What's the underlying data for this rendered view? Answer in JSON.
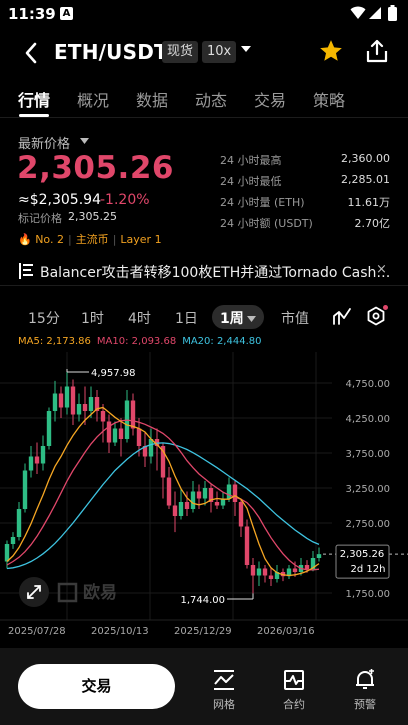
{
  "status_bar": {
    "time": "11:39",
    "notification_icon": "A"
  },
  "header": {
    "pair": "ETH/USDT",
    "market_type": "现货",
    "leverage": "10x"
  },
  "tabs": [
    "行情",
    "概况",
    "数据",
    "动态",
    "交易",
    "策略"
  ],
  "price": {
    "label": "最新价格",
    "last": "2,305.26",
    "usd": "≈$2,305.94",
    "change_pct": "-1.20%",
    "mark_label": "标记价格",
    "mark_value": "2,305.25",
    "rank": "No. 2",
    "tag1": "主流币",
    "tag2": "Layer 1"
  },
  "stats": [
    {
      "label": "24 小时最高",
      "value": "2,360.00"
    },
    {
      "label": "24 小时最低",
      "value": "2,285.01"
    },
    {
      "label": "24 小时量 (ETH)",
      "value": "11.61万"
    },
    {
      "label": "24 小时额 (USDT)",
      "value": "2.70亿"
    }
  ],
  "news": {
    "text": "Balancer攻击者转移100枚ETH并通过Tornado Cash…",
    "close": "×"
  },
  "intervals": [
    "15分",
    "1时",
    "4时",
    "1日",
    "1周",
    "市值"
  ],
  "active_interval": "1周",
  "ma_legend": {
    "ma5": "MA5: 2,173.86",
    "ma10": "MA10: 2,093.68",
    "ma20": "MA20: 2,444.80"
  },
  "colors": {
    "up": "#2ebd85",
    "down": "#e0476a",
    "ma5": "#f5a623",
    "ma10": "#e0476a",
    "ma20": "#3ec3e0",
    "accent_star": "#f5b700"
  },
  "chart_data": {
    "type": "candlestick",
    "y_ticks": [
      "4,750.00",
      "4,250.00",
      "3,750.00",
      "3,250.00",
      "2,750.00",
      "1,750.00"
    ],
    "y_tick_values": [
      4750,
      4250,
      3750,
      3250,
      2750,
      1750
    ],
    "x_labels": [
      "2025/07/28",
      "2025/10/13",
      "2025/12/29",
      "2026/03/16"
    ],
    "high_label": "4,957.98",
    "low_label": "1,744.00",
    "current_price_label": "2,305.26",
    "countdown_label": "2d 12h",
    "watermark": "欧易",
    "candles": [
      [
        2200,
        2450,
        2100,
        2500
      ],
      [
        2450,
        2550,
        2380,
        2620
      ],
      [
        2550,
        2950,
        2500,
        3050
      ],
      [
        2950,
        3500,
        2900,
        3600
      ],
      [
        3500,
        3700,
        3400,
        3850
      ],
      [
        3700,
        3600,
        3450,
        3900
      ],
      [
        3600,
        3850,
        3500,
        4000
      ],
      [
        3850,
        4350,
        3800,
        4400
      ],
      [
        4350,
        4600,
        4200,
        4780
      ],
      [
        4600,
        4400,
        4250,
        4700
      ],
      [
        4400,
        4700,
        4300,
        4950
      ],
      [
        4700,
        4300,
        4150,
        4800
      ],
      [
        4300,
        4450,
        4200,
        4600
      ],
      [
        4450,
        4350,
        4150,
        4700
      ],
      [
        4350,
        4550,
        4250,
        4700
      ],
      [
        4550,
        4350,
        4200,
        4650
      ],
      [
        4350,
        4200,
        3900,
        4450
      ],
      [
        4200,
        3900,
        3750,
        4300
      ],
      [
        3900,
        4100,
        3850,
        4200
      ],
      [
        4100,
        3950,
        3700,
        4250
      ],
      [
        3950,
        4500,
        3900,
        4650
      ],
      [
        4500,
        4100,
        4000,
        4600
      ],
      [
        4100,
        3850,
        3700,
        4250
      ],
      [
        3850,
        3700,
        3550,
        4050
      ],
      [
        3700,
        3950,
        3600,
        4100
      ],
      [
        3950,
        3850,
        3500,
        4100
      ],
      [
        3850,
        3400,
        3100,
        3900
      ],
      [
        3400,
        3000,
        2950,
        3550
      ],
      [
        3000,
        2850,
        2620,
        3200
      ],
      [
        2850,
        3050,
        2800,
        3250
      ],
      [
        3050,
        2950,
        2850,
        3200
      ],
      [
        2950,
        3200,
        2900,
        3350
      ],
      [
        3200,
        3100,
        2950,
        3300
      ],
      [
        3100,
        3250,
        3000,
        3350
      ],
      [
        3250,
        3050,
        2900,
        3300
      ],
      [
        3050,
        3000,
        2950,
        3200
      ],
      [
        3000,
        3100,
        2950,
        3200
      ],
      [
        3100,
        3300,
        3050,
        3400
      ],
      [
        3300,
        3050,
        2850,
        3350
      ],
      [
        3050,
        2700,
        2550,
        3100
      ],
      [
        2700,
        2150,
        2100,
        2800
      ],
      [
        2150,
        2000,
        1744,
        2250
      ],
      [
        2000,
        2100,
        1850,
        2200
      ],
      [
        2100,
        2000,
        1900,
        2150
      ],
      [
        2000,
        1950,
        1850,
        2100
      ],
      [
        1950,
        2050,
        1900,
        2150
      ],
      [
        2050,
        1990,
        1920,
        2100
      ],
      [
        1990,
        2100,
        1950,
        2150
      ],
      [
        2100,
        2050,
        1980,
        2200
      ],
      [
        2050,
        2150,
        2000,
        2250
      ],
      [
        2150,
        2090,
        2040,
        2220
      ],
      [
        2090,
        2250,
        2060,
        2350
      ],
      [
        2250,
        2305,
        2200,
        2400
      ]
    ],
    "ma5": [
      2200,
      2280,
      2400,
      2560,
      2740,
      2950,
      3150,
      3370,
      3560,
      3700,
      3860,
      4000,
      4120,
      4220,
      4300,
      4380,
      4400,
      4330,
      4260,
      4200,
      4150,
      4130,
      4100,
      4050,
      3950,
      3870,
      3780,
      3630,
      3420,
      3240,
      3110,
      3030,
      3010,
      3030,
      3080,
      3100,
      3090,
      3090,
      3140,
      3090,
      2960,
      2700,
      2450,
      2240,
      2110,
      2040,
      2010,
      2000,
      2010,
      2030,
      2060,
      2110,
      2170
    ],
    "ma10": [
      2150,
      2200,
      2260,
      2340,
      2440,
      2560,
      2700,
      2850,
      3010,
      3180,
      3350,
      3500,
      3630,
      3760,
      3880,
      3980,
      4060,
      4130,
      4180,
      4210,
      4220,
      4210,
      4190,
      4160,
      4120,
      4080,
      4030,
      3960,
      3870,
      3760,
      3640,
      3540,
      3450,
      3380,
      3310,
      3250,
      3190,
      3150,
      3120,
      3090,
      3040,
      2950,
      2830,
      2680,
      2540,
      2420,
      2310,
      2220,
      2150,
      2100,
      2080,
      2080,
      2090
    ],
    "ma20": [
      2100,
      2110,
      2130,
      2160,
      2200,
      2250,
      2310,
      2380,
      2460,
      2550,
      2650,
      2750,
      2860,
      2970,
      3080,
      3190,
      3300,
      3400,
      3500,
      3580,
      3660,
      3730,
      3790,
      3840,
      3870,
      3890,
      3895,
      3885,
      3865,
      3835,
      3800,
      3755,
      3705,
      3650,
      3595,
      3540,
      3480,
      3420,
      3360,
      3300,
      3240,
      3170,
      3100,
      3020,
      2940,
      2860,
      2790,
      2720,
      2650,
      2590,
      2530,
      2480,
      2445
    ]
  },
  "bottom_bar": {
    "trade": "交易",
    "grid": "网格",
    "contract": "合约",
    "alert": "预警"
  }
}
